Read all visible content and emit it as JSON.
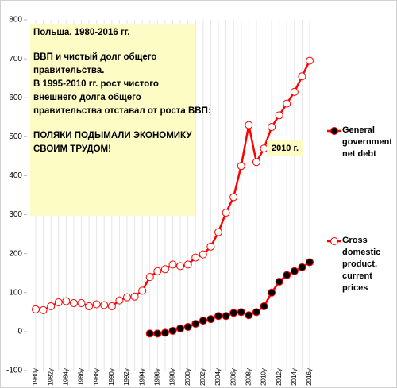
{
  "chart_data": {
    "type": "line",
    "categories": [
      "1980y",
      null,
      "1982y",
      null,
      "1984y",
      null,
      "1986y",
      null,
      "1988y",
      null,
      "1990y",
      null,
      "1992y",
      null,
      "1994y",
      null,
      "1996y",
      null,
      "1998y",
      null,
      "2000y",
      null,
      "2002y",
      null,
      "2004y",
      null,
      "2006y",
      null,
      "2008y",
      null,
      "2010y",
      null,
      "2012y",
      null,
      "2014y",
      null,
      "2016y"
    ],
    "series": [
      {
        "name": "General government net debt",
        "color": "#ff0000",
        "marker_color": "#000000",
        "values": [
          null,
          null,
          null,
          null,
          null,
          null,
          null,
          null,
          null,
          null,
          null,
          null,
          null,
          null,
          null,
          -5,
          -5,
          -3,
          2,
          8,
          12,
          20,
          28,
          32,
          40,
          40,
          48,
          50,
          42,
          50,
          65,
          100,
          128,
          145,
          155,
          165,
          178
        ]
      },
      {
        "name": "Gross domestic product, current prices",
        "color": "#ff0000",
        "marker_color": "#ffffff",
        "values": [
          57,
          55,
          65,
          75,
          78,
          73,
          73,
          65,
          70,
          68,
          65,
          80,
          88,
          90,
          105,
          140,
          155,
          160,
          172,
          168,
          172,
          190,
          198,
          218,
          255,
          305,
          345,
          425,
          530,
          435,
          470,
          525,
          555,
          585,
          615,
          655,
          695
        ]
      }
    ],
    "ylim": [
      -100,
      800
    ],
    "yticks": [
      -100,
      0,
      100,
      200,
      300,
      400,
      500,
      600,
      700,
      800
    ],
    "annotation_box": [
      [
        "Польша. 1980-2016 гг."
      ],
      [
        "ВВП и чистый долг общего",
        "правительства.",
        "В 1995-2010 гг. рост чистого",
        "внешнего долга общего",
        "правительства отставал от роста ВВП:"
      ],
      [
        "ПОЛЯКИ ПОДЫМАЛИ ЭКОНОМИКУ",
        "СВОИМ ТРУДОМ!"
      ]
    ],
    "callout": "2010 г."
  }
}
